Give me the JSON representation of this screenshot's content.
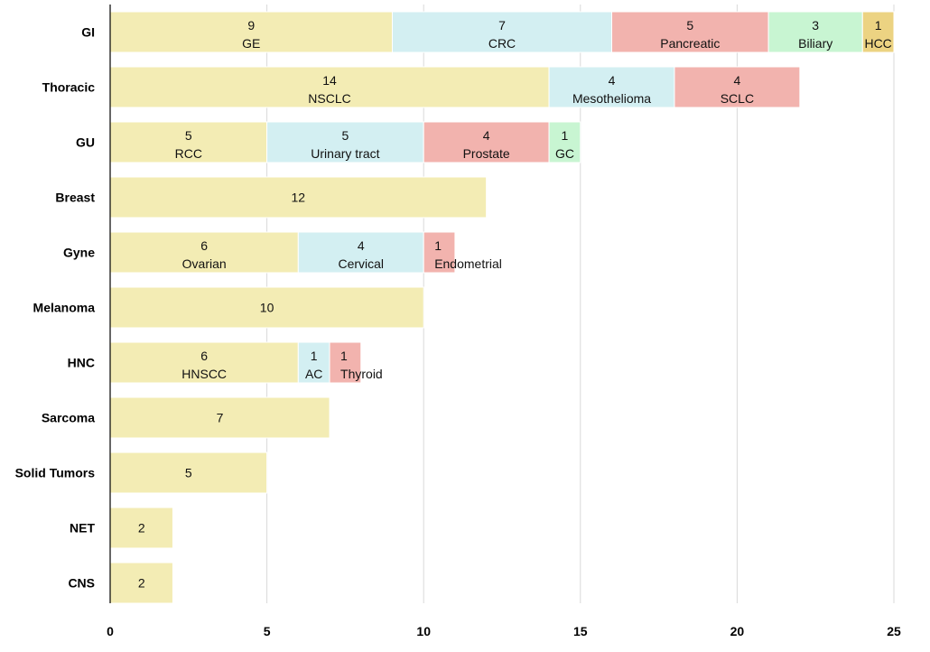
{
  "chart_data": {
    "type": "bar",
    "orientation": "horizontal",
    "stacked": true,
    "title": "",
    "xlabel": "",
    "ylabel": "",
    "xlim": [
      0,
      25
    ],
    "x_ticks": [
      0,
      5,
      10,
      15,
      20,
      25
    ],
    "grid": "vertical",
    "legend": "none",
    "colors": [
      "#f3ecb4",
      "#d3eff2",
      "#f2b3ae",
      "#c8f5d2",
      "#ecd382"
    ],
    "categories": [
      {
        "name": "GI",
        "segments": [
          {
            "label": "GE",
            "value": 9
          },
          {
            "label": "CRC",
            "value": 7
          },
          {
            "label": "Pancreatic",
            "value": 5
          },
          {
            "label": "Biliary",
            "value": 3
          },
          {
            "label": "HCC",
            "value": 1
          }
        ]
      },
      {
        "name": "Thoracic",
        "segments": [
          {
            "label": "NSCLC",
            "value": 14
          },
          {
            "label": "Mesothelioma",
            "value": 4
          },
          {
            "label": "SCLC",
            "value": 4
          }
        ]
      },
      {
        "name": "GU",
        "segments": [
          {
            "label": "RCC",
            "value": 5
          },
          {
            "label": "Urinary tract",
            "value": 5
          },
          {
            "label": "Prostate",
            "value": 4
          },
          {
            "label": "GC",
            "value": 1
          }
        ]
      },
      {
        "name": "Breast",
        "segments": [
          {
            "label": "",
            "value": 12
          }
        ]
      },
      {
        "name": "Gyne",
        "segments": [
          {
            "label": "Ovarian",
            "value": 6
          },
          {
            "label": "Cervical",
            "value": 4
          },
          {
            "label": "Endometrial",
            "value": 1
          }
        ]
      },
      {
        "name": "Melanoma",
        "segments": [
          {
            "label": "",
            "value": 10
          }
        ]
      },
      {
        "name": "HNC",
        "segments": [
          {
            "label": "HNSCC",
            "value": 6
          },
          {
            "label": "AC",
            "value": 1
          },
          {
            "label": "Thyroid",
            "value": 1
          }
        ]
      },
      {
        "name": "Sarcoma",
        "segments": [
          {
            "label": "",
            "value": 7
          }
        ]
      },
      {
        "name": "Solid Tumors",
        "segments": [
          {
            "label": "",
            "value": 5
          }
        ]
      },
      {
        "name": "NET",
        "segments": [
          {
            "label": "",
            "value": 2
          }
        ]
      },
      {
        "name": "CNS",
        "segments": [
          {
            "label": "",
            "value": 2
          }
        ]
      }
    ]
  }
}
